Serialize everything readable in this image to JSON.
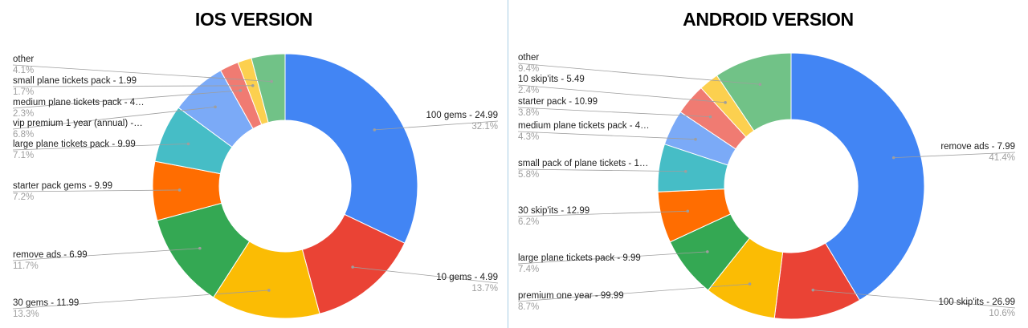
{
  "chart_data": [
    {
      "type": "donut",
      "title": "IOS VERSION",
      "slices": [
        {
          "label": "100 gems - 24.99",
          "pct": "32.1%",
          "value": 32.1,
          "color": "#4285f4"
        },
        {
          "label": "10 gems - 4.99",
          "pct": "13.7%",
          "value": 13.7,
          "color": "#ea4335"
        },
        {
          "label": "30 gems - 11.99",
          "pct": "13.3%",
          "value": 13.3,
          "color": "#fbbc04"
        },
        {
          "label": "remove ads - 6.99",
          "pct": "11.7%",
          "value": 11.7,
          "color": "#34a853"
        },
        {
          "label": "starter pack gems - 9.99",
          "pct": "7.2%",
          "value": 7.2,
          "color": "#ff6d01"
        },
        {
          "label": "large plane tickets pack - 9.99",
          "pct": "7.1%",
          "value": 7.1,
          "color": "#46bdc6"
        },
        {
          "label": "vip premium 1 year (annual) -…",
          "pct": "6.8%",
          "value": 6.8,
          "color": "#7baaf7"
        },
        {
          "label": "medium plane tickets pack - 4…",
          "pct": "2.3%",
          "value": 2.3,
          "color": "#f07b72"
        },
        {
          "label": "small plane tickets pack - 1.99",
          "pct": "1.7%",
          "value": 1.7,
          "color": "#fcd04f"
        },
        {
          "label": "other",
          "pct": "4.1%",
          "value": 4.1,
          "color": "#71c287"
        }
      ]
    },
    {
      "type": "donut",
      "title": "ANDROID VERSION",
      "slices": [
        {
          "label": "remove ads - 7.99",
          "pct": "41.4%",
          "value": 41.4,
          "color": "#4285f4"
        },
        {
          "label": "100 skip'its - 26.99",
          "pct": "10.6%",
          "value": 10.6,
          "color": "#ea4335"
        },
        {
          "label": "premium one year - 99.99",
          "pct": "8.7%",
          "value": 8.7,
          "color": "#fbbc04"
        },
        {
          "label": "large plane tickets pack - 9.99",
          "pct": "7.4%",
          "value": 7.4,
          "color": "#34a853"
        },
        {
          "label": "30 skip'its - 12.99",
          "pct": "6.2%",
          "value": 6.2,
          "color": "#ff6d01"
        },
        {
          "label": "small pack of plane tickets - 1…",
          "pct": "5.8%",
          "value": 5.8,
          "color": "#46bdc6"
        },
        {
          "label": "medium plane tickets pack - 4…",
          "pct": "4.3%",
          "value": 4.3,
          "color": "#7baaf7"
        },
        {
          "label": "starter pack - 10.99",
          "pct": "3.8%",
          "value": 3.8,
          "color": "#f07b72"
        },
        {
          "label": "10 skip'its - 5.49",
          "pct": "2.4%",
          "value": 2.4,
          "color": "#fcd04f"
        },
        {
          "label": "other",
          "pct": "9.4%",
          "value": 9.4,
          "color": "#71c287"
        }
      ]
    }
  ]
}
